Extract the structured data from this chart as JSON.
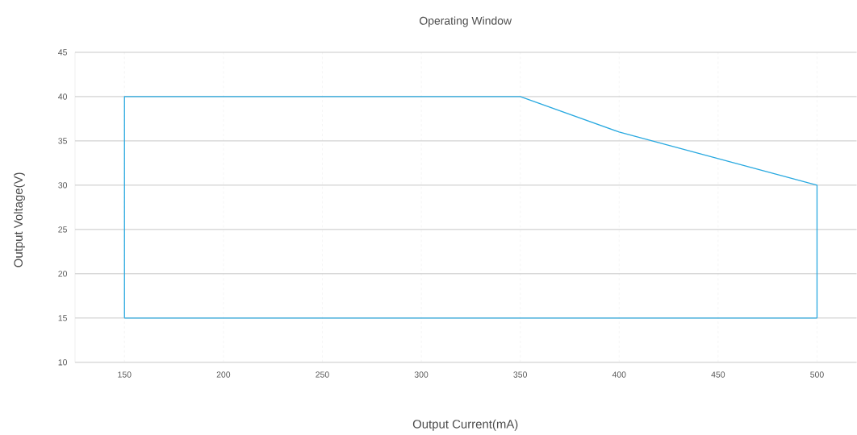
{
  "chart_data": {
    "type": "line",
    "title": "Operating Window",
    "xlabel": "Output Current(mA)",
    "ylabel": "Output Voltage(V)",
    "x": [
      150,
      150,
      350,
      400,
      500,
      500
    ],
    "series": [
      {
        "color": "#29a9e0",
        "values": [
          15,
          40,
          40,
          36,
          30,
          15
        ]
      },
      {
        "color": "#29a9e0",
        "x": [
          150,
          500
        ],
        "values": [
          15,
          15
        ]
      }
    ],
    "xlim": [
      125,
      520
    ],
    "ylim": [
      10,
      45
    ],
    "xticks": [
      150,
      200,
      250,
      300,
      350,
      400,
      450,
      500
    ],
    "yticks": [
      10,
      15,
      20,
      25,
      30,
      35,
      40,
      45
    ],
    "grid": true,
    "legend": false,
    "marker": "none",
    "line_style": "solid"
  }
}
